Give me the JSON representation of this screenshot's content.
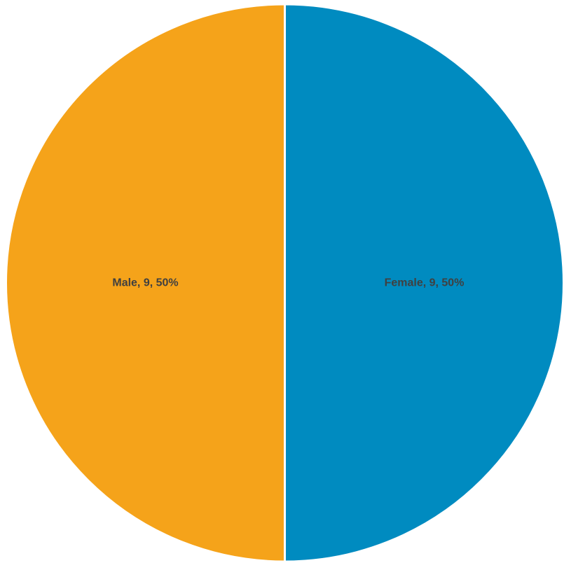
{
  "chart_data": {
    "type": "pie",
    "title": "",
    "slices": [
      {
        "label": "Female",
        "value": 9,
        "percent": 50,
        "color": "#008BC0",
        "data_label": "Female, 9, 50%"
      },
      {
        "label": "Male",
        "value": 9,
        "percent": 50,
        "color": "#F5A31A",
        "data_label": "Male, 9, 50%"
      }
    ],
    "start_angle": "12 o'clock",
    "direction": "clockwise",
    "legend": "none",
    "slice_border_color": "#FFFFFF",
    "label_color": "#404040"
  }
}
